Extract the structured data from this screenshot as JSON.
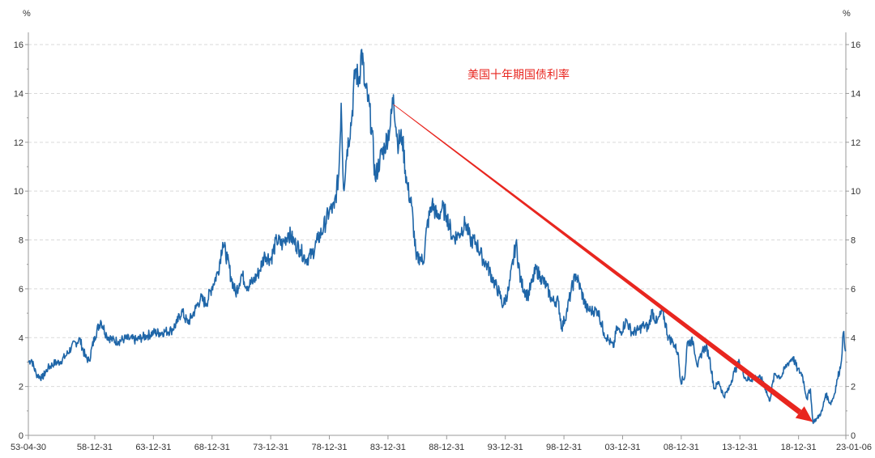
{
  "chart_data": {
    "type": "line",
    "title": "",
    "annotation": "美国十年期国债利率",
    "y_unit_left": "%",
    "y_unit_right": "%",
    "ylim": [
      0,
      16.5
    ],
    "yticks": [
      0,
      2,
      4,
      6,
      8,
      10,
      12,
      14,
      16
    ],
    "ytick_labels": [
      "0",
      "2",
      "4",
      "6",
      "8",
      "10",
      "12",
      "14",
      "16"
    ],
    "xlim": [
      1953.33,
      2023.02
    ],
    "xticks": [
      1953.33,
      1958.99,
      1963.99,
      1968.99,
      1973.99,
      1978.99,
      1983.99,
      1988.99,
      1993.99,
      1998.99,
      2003.99,
      2008.99,
      2013.99,
      2018.99,
      2023.02
    ],
    "xtick_labels": [
      "53-04-30",
      "58-12-31",
      "63-12-31",
      "68-12-31",
      "73-12-31",
      "78-12-31",
      "83-12-31",
      "88-12-31",
      "93-12-31",
      "98-12-31",
      "03-12-31",
      "08-12-31",
      "13-12-31",
      "18-12-31",
      "23-01-06"
    ],
    "grid": true,
    "series": [
      {
        "name": "美国十年期国债利率",
        "color": "#1f66a8",
        "x": [
          1953.33,
          1953.6,
          1954.0,
          1954.5,
          1955.0,
          1955.5,
          1956.0,
          1956.6,
          1957.0,
          1957.7,
          1958.2,
          1958.5,
          1958.99,
          1959.5,
          1960.0,
          1960.5,
          1961.0,
          1961.5,
          1962.0,
          1962.5,
          1963.0,
          1963.5,
          1964.0,
          1964.5,
          1965.0,
          1965.5,
          1966.0,
          1966.4,
          1966.9,
          1967.2,
          1967.6,
          1968.0,
          1968.5,
          1969.0,
          1969.5,
          1969.9,
          1970.3,
          1970.6,
          1971.0,
          1971.5,
          1972.0,
          1972.5,
          1973.0,
          1973.5,
          1974.0,
          1974.5,
          1975.0,
          1975.5,
          1976.0,
          1976.5,
          1977.0,
          1977.5,
          1978.0,
          1978.5,
          1979.0,
          1979.4,
          1979.8,
          1980.0,
          1980.2,
          1980.5,
          1980.9,
          1981.2,
          1981.5,
          1981.75,
          1982.0,
          1982.3,
          1982.6,
          1982.9,
          1983.3,
          1983.7,
          1984.2,
          1984.45,
          1984.8,
          1985.2,
          1985.6,
          1986.0,
          1986.4,
          1986.7,
          1987.0,
          1987.3,
          1987.75,
          1988.2,
          1988.6,
          1989.0,
          1989.5,
          1990.0,
          1990.6,
          1991.0,
          1991.5,
          1992.0,
          1992.5,
          1993.0,
          1993.5,
          1993.8,
          1994.3,
          1994.9,
          1995.3,
          1995.9,
          1996.3,
          1996.6,
          1997.0,
          1997.5,
          1998.0,
          1998.5,
          1998.8,
          1999.2,
          1999.6,
          2000.0,
          2000.4,
          2000.9,
          2001.3,
          2001.9,
          2002.4,
          2002.8,
          2003.2,
          2003.5,
          2003.8,
          2004.3,
          2004.8,
          2005.3,
          2005.8,
          2006.2,
          2006.5,
          2006.9,
          2007.4,
          2007.9,
          2008.3,
          2008.7,
          2008.95,
          2009.3,
          2009.5,
          2010.0,
          2010.4,
          2010.8,
          2011.1,
          2011.4,
          2011.8,
          2012.2,
          2012.6,
          2013.0,
          2013.5,
          2013.95,
          2014.5,
          2015.0,
          2015.5,
          2016.0,
          2016.5,
          2016.95,
          2017.5,
          2018.0,
          2018.5,
          2018.9,
          2019.3,
          2019.7,
          2020.0,
          2020.2,
          2020.6,
          2021.0,
          2021.3,
          2021.7,
          2022.0,
          2022.3,
          2022.6,
          2022.8,
          2023.02
        ],
        "values": [
          3.0,
          3.1,
          2.5,
          2.35,
          2.75,
          2.95,
          3.0,
          3.3,
          3.6,
          3.95,
          3.2,
          3.05,
          4.05,
          4.7,
          4.1,
          3.9,
          3.85,
          3.95,
          3.95,
          3.9,
          4.0,
          4.1,
          4.2,
          4.2,
          4.25,
          4.3,
          4.6,
          5.1,
          4.6,
          4.8,
          5.2,
          5.6,
          5.4,
          6.1,
          6.7,
          7.9,
          7.2,
          6.5,
          5.8,
          6.6,
          6.1,
          6.3,
          6.7,
          7.4,
          7.2,
          8.0,
          7.8,
          8.3,
          7.9,
          7.6,
          7.2,
          7.4,
          8.0,
          8.5,
          9.2,
          9.3,
          10.7,
          13.6,
          10.1,
          11.7,
          13.0,
          15.0,
          14.5,
          15.8,
          14.3,
          13.7,
          12.6,
          10.5,
          11.3,
          11.8,
          12.7,
          13.95,
          12.0,
          12.2,
          10.3,
          9.4,
          7.2,
          7.3,
          7.1,
          8.5,
          9.5,
          8.9,
          9.3,
          9.0,
          8.1,
          8.2,
          8.7,
          8.0,
          7.9,
          7.3,
          6.9,
          6.3,
          5.8,
          5.3,
          6.0,
          7.9,
          6.3,
          5.7,
          6.3,
          6.8,
          6.5,
          6.1,
          5.5,
          5.5,
          4.4,
          5.0,
          5.9,
          6.6,
          6.0,
          5.2,
          5.1,
          5.1,
          4.2,
          3.9,
          3.6,
          4.4,
          4.2,
          4.7,
          4.2,
          4.3,
          4.5,
          4.4,
          5.1,
          4.6,
          5.1,
          4.0,
          3.8,
          3.4,
          2.2,
          2.4,
          3.8,
          3.85,
          2.8,
          3.5,
          3.6,
          3.2,
          1.9,
          2.2,
          1.6,
          1.85,
          2.6,
          3.0,
          2.3,
          2.3,
          2.4,
          2.2,
          1.4,
          2.5,
          2.4,
          2.9,
          3.2,
          2.7,
          2.5,
          1.5,
          1.9,
          0.55,
          0.7,
          1.0,
          1.7,
          1.3,
          1.6,
          2.3,
          2.9,
          4.2,
          3.5
        ]
      }
    ],
    "arrow": {
      "start": {
        "x": 1984.45,
        "y": 13.55
      },
      "end": {
        "x": 2020.2,
        "y": 0.55
      },
      "color": "#e8261f"
    }
  }
}
